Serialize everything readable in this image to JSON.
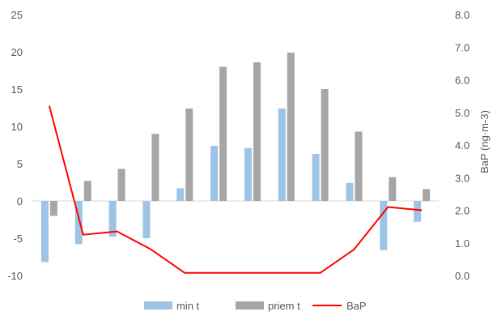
{
  "chart_data": {
    "type": "bar",
    "categories": [
      "",
      "",
      "",
      "",
      "",
      "",
      "",
      "",
      "",
      "",
      "",
      ""
    ],
    "series": [
      {
        "name": "min t",
        "kind": "bar",
        "axis": "left",
        "color": "#9dc3e6",
        "values": [
          -8.2,
          -5.8,
          -4.8,
          -5.0,
          1.7,
          7.4,
          7.1,
          12.4,
          6.3,
          2.4,
          -6.6,
          -2.8
        ]
      },
      {
        "name": "priem t",
        "kind": "bar",
        "axis": "left",
        "color": "#a6a6a6",
        "values": [
          -2.0,
          2.7,
          4.3,
          9.0,
          12.4,
          18.0,
          18.6,
          19.9,
          15.0,
          9.3,
          3.2,
          1.6
        ]
      },
      {
        "name": "BaP",
        "kind": "line",
        "axis": "right",
        "color": "#ff0000",
        "values": [
          5.2,
          1.25,
          1.35,
          0.8,
          0.08,
          0.08,
          0.08,
          0.08,
          0.08,
          0.8,
          2.1,
          2.0
        ]
      }
    ],
    "left_axis": {
      "min": -10,
      "max": 25,
      "step": 5,
      "tick_labels": [
        "-10",
        "-5",
        "0",
        "5",
        "10",
        "15",
        "20",
        "25"
      ]
    },
    "right_axis": {
      "min": 0,
      "max": 8,
      "step": 1,
      "label": "BaP (ng·m-3)",
      "tick_labels": [
        "0.0",
        "1.0",
        "2.0",
        "3.0",
        "4.0",
        "5.0",
        "6.0",
        "7.0",
        "8.0"
      ]
    },
    "grid": false,
    "legend_position": "bottom"
  }
}
